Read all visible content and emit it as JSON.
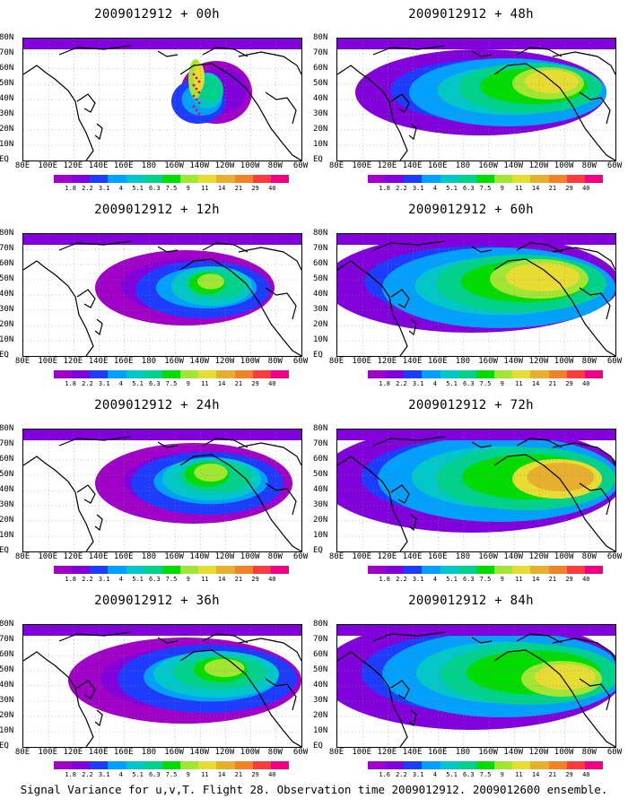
{
  "panels": [
    {
      "title": "2009012912 + 00h"
    },
    {
      "title": "2009012912 + 48h"
    },
    {
      "title": "2009012912 + 12h"
    },
    {
      "title": "2009012912 + 60h"
    },
    {
      "title": "2009012912 + 24h"
    },
    {
      "title": "2009012912 + 72h"
    },
    {
      "title": "2009012912 + 36h"
    },
    {
      "title": "2009012912 + 84h"
    }
  ],
  "footer": "Signal Variance for u,v,T. Flight 28. Observation time 2009012912. 2009012600 ensemble.",
  "chart_data": {
    "type": "heatmap",
    "x_ticks": [
      "80E",
      "100E",
      "120E",
      "140E",
      "160E",
      "180",
      "160W",
      "140W",
      "120W",
      "100W",
      "80W",
      "60W"
    ],
    "y_ticks": [
      "EQ",
      "10N",
      "20N",
      "30N",
      "40N",
      "50N",
      "60N",
      "70N",
      "80N"
    ],
    "colorbar_labels": [
      "1.8",
      "2.2",
      "3.1",
      "4",
      "5.1",
      "6.3",
      "7.5",
      "9",
      "11",
      "14",
      "21",
      "29",
      "40"
    ],
    "colorbar_labels_alt": [
      "1.6",
      "2.2",
      "3.1",
      "4",
      "5.1",
      "6.3",
      "7.5",
      "9",
      "11",
      "14",
      "21",
      "29",
      "40"
    ],
    "colorbar_colors": [
      "#a000c8",
      "#8200dc",
      "#1e3cff",
      "#00a0ff",
      "#00c8c8",
      "#00d28c",
      "#00dc00",
      "#a0e632",
      "#e6dc32",
      "#e6af2d",
      "#f08228",
      "#fa3c3c",
      "#f00082"
    ],
    "lead_times_h": [
      0,
      12,
      24,
      36,
      48,
      60,
      72,
      84
    ]
  }
}
